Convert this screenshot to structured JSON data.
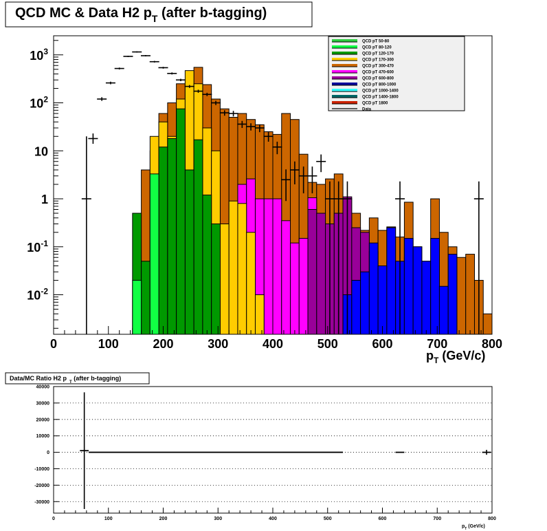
{
  "chart_data": [
    {
      "type": "histogram",
      "title": "QCD MC & Data H2 p",
      "title_sub": "T",
      "title_suffix": "(after b-tagging)",
      "xlabel": "p",
      "xlabel_sub": "T",
      "xlabel_suffix": "(GeV/c)",
      "xlim": [
        0,
        800
      ],
      "ylim": [
        0.0015,
        2500
      ],
      "y_scale": "log",
      "x_ticks": [
        "0",
        "100",
        "200",
        "300",
        "400",
        "500",
        "600",
        "700",
        "800"
      ],
      "y_ticks": [
        {
          "base": "10",
          "exp": "3",
          "value": 1000
        },
        {
          "base": "10",
          "exp": "2",
          "value": 100
        },
        {
          "base": "10",
          "exp": "",
          "value": 10
        },
        {
          "base": "1",
          "exp": "",
          "value": 1
        },
        {
          "base": "10",
          "exp": "-1",
          "value": 0.1
        },
        {
          "base": "10",
          "exp": "-2",
          "value": 0.01
        }
      ],
      "bin_edges": [
        0,
        16,
        32,
        48,
        64,
        80,
        96,
        112,
        128,
        144,
        160,
        176,
        192,
        208,
        224,
        240,
        256,
        272,
        288,
        304,
        320,
        336,
        352,
        368,
        384,
        400,
        416,
        432,
        448,
        464,
        480,
        496,
        512,
        528,
        544,
        560,
        576,
        592,
        608,
        624,
        640,
        656,
        672,
        688,
        704,
        720,
        736,
        752,
        768,
        784,
        800
      ],
      "legend_position": "top-right",
      "series": [
        {
          "name": "QCD pT 50-80",
          "color": "#2ecc40",
          "values": []
        },
        {
          "name": "QCD pT 80-120",
          "color": "#11ff44",
          "values": [
            0,
            0,
            0,
            0,
            0,
            0,
            0,
            0,
            0,
            0.02,
            0,
            3.3,
            0,
            0,
            0,
            0,
            0,
            0,
            0,
            0,
            0,
            0,
            0,
            0,
            0,
            0,
            0,
            0,
            0,
            0,
            0,
            0,
            0,
            0,
            0,
            0,
            0,
            0,
            0,
            0,
            0,
            0,
            0,
            0,
            0,
            0,
            0,
            0,
            0,
            0
          ]
        },
        {
          "name": "QCD pT 120-170",
          "color": "#009900",
          "values": [
            0,
            0,
            0,
            0,
            0,
            0,
            0,
            0,
            0,
            0.5,
            0.05,
            1.5,
            12,
            18,
            75,
            4,
            17,
            1.2,
            0.3,
            0,
            0,
            0,
            0,
            0,
            0,
            0,
            0,
            0,
            0,
            0,
            0,
            0,
            0,
            0,
            0,
            0,
            0,
            0,
            0,
            0,
            0,
            0,
            0,
            0,
            0,
            0,
            0,
            0,
            0,
            0
          ]
        },
        {
          "name": "QCD pT 170-300",
          "color": "#ffcc00",
          "values": [
            0,
            0,
            0,
            0,
            0,
            0,
            0,
            0,
            0,
            0,
            0,
            20,
            40,
            20,
            120,
            470,
            250,
            30,
            10,
            0.3,
            0.9,
            0.8,
            0.2,
            0.01,
            0,
            0,
            0,
            0,
            0,
            0,
            0,
            0,
            0,
            0,
            0,
            0,
            0,
            0,
            0,
            0,
            0,
            0,
            0,
            0,
            0,
            0,
            0,
            0,
            0,
            0
          ]
        },
        {
          "name": "QCD pT 300-470",
          "color": "#cc6600",
          "values": [
            0,
            0,
            0,
            0,
            0,
            0,
            0,
            0,
            0,
            0,
            0,
            0,
            0,
            0,
            0,
            0,
            0,
            0,
            0,
            80,
            45,
            50,
            75,
            40,
            10,
            4,
            50,
            30,
            7,
            1.0,
            0.1,
            0.5,
            0.1,
            0.005,
            0.2,
            0,
            0,
            0,
            0,
            0,
            0,
            0,
            0,
            0,
            0,
            0,
            0,
            0,
            0,
            0
          ]
        },
        {
          "name": "QCD pT 470-600",
          "color": "#ff00ff",
          "values": [
            0,
            0,
            0,
            0,
            0,
            0,
            0,
            0,
            0,
            0,
            0,
            0,
            0,
            0,
            0,
            0,
            0,
            0,
            0,
            0,
            0,
            0,
            0,
            0,
            0,
            0,
            0,
            0,
            0,
            0,
            0,
            0,
            0,
            0,
            0,
            0,
            0,
            0,
            0,
            0,
            0,
            0,
            0,
            0,
            0,
            0,
            0,
            0,
            0,
            0
          ]
        },
        {
          "name": "QCD pT 600-800",
          "color": "#990099",
          "values": [
            0,
            0,
            0,
            0,
            0,
            0,
            0,
            0,
            0,
            0,
            0,
            0,
            0,
            0,
            0,
            0,
            0,
            0,
            0,
            0,
            0,
            0,
            0,
            0,
            0,
            0,
            0,
            0,
            0,
            0,
            0,
            0,
            0,
            0,
            0,
            0,
            0,
            0,
            0,
            0,
            0,
            0,
            0,
            0,
            0,
            0,
            0,
            0,
            0,
            0
          ]
        },
        {
          "name": "QCD pT 800-1000",
          "color": "#000099",
          "values": []
        },
        {
          "name": "QCD pT 1000-1400",
          "color": "#33ffff",
          "values": []
        },
        {
          "name": "QCD pT 1400-1800",
          "color": "#006666",
          "values": []
        },
        {
          "name": "QCD pT 1800",
          "color": "#cc2200",
          "values": []
        },
        {
          "name": "Data",
          "color": "#000000",
          "values": []
        }
      ],
      "stack_totals": [
        0,
        0,
        0,
        0,
        0,
        0,
        0,
        0,
        0,
        0.002,
        4,
        10,
        60,
        100,
        250,
        280,
        550,
        240,
        120,
        75,
        50,
        60,
        45,
        35,
        25,
        22,
        60,
        45,
        8.5,
        2.2,
        2.0,
        2.6,
        3.3,
        1.0,
        0.5,
        0.22,
        0.4,
        0.22,
        0.26,
        0.16,
        0.85,
        0.1,
        0.05,
        1.0,
        0.2,
        0.1,
        0.06,
        0.07,
        0.02,
        0.004
      ],
      "mid_stacks": [
        {
          "color": "#ff00ff",
          "upper": [
            0,
            0,
            0,
            0,
            0,
            0,
            0,
            0,
            0,
            0,
            0,
            0,
            0,
            0,
            0,
            0,
            0,
            0,
            0,
            0,
            0,
            0,
            0,
            0,
            0,
            0,
            0,
            0,
            0,
            0,
            0,
            0,
            0,
            0,
            0,
            0,
            0,
            0,
            0,
            0,
            0,
            0,
            0,
            0,
            0,
            0,
            0,
            0,
            0,
            0
          ]
        },
        {
          "color": "#990099",
          "upper": []
        }
      ],
      "magenta_segment": {
        "start_bin": 21,
        "values": [
          2.0,
          2.6,
          1.0,
          1.0,
          1.0,
          0.35,
          0.12,
          0.15,
          1.05,
          0.1,
          0.03,
          0.2,
          0.02,
          0.01,
          0.005
        ]
      },
      "purple_segment": {
        "start_bin": 29,
        "values": [
          0.6,
          0.5,
          0.3,
          0.5,
          1.1,
          0.25,
          0.2,
          0.08,
          0.04,
          0.05,
          0.03,
          0.06,
          0.005
        ]
      },
      "blue_segment": {
        "start_bin": 33,
        "values": [
          0.01,
          0.02,
          0.03,
          0.12,
          0.04,
          0.25,
          0.05,
          0.15,
          0.1,
          0.05,
          0.15,
          0.015,
          0.07
        ]
      },
      "data_points": [
        {
          "x": 60,
          "y": 1,
          "ylo": 0.0015,
          "yhi": 20
        },
        {
          "x": 72,
          "y": 18,
          "ylo": 14,
          "yhi": 23
        },
        {
          "x": 88,
          "y": 120,
          "ylo": 110,
          "yhi": 131
        },
        {
          "x": 104,
          "y": 260,
          "ylo": 244,
          "yhi": 276
        },
        {
          "x": 120,
          "y": 520,
          "ylo": 497,
          "yhi": 543
        },
        {
          "x": 136,
          "y": 930,
          "ylo": 900,
          "yhi": 960
        },
        {
          "x": 152,
          "y": 1150,
          "ylo": 1116,
          "yhi": 1184
        },
        {
          "x": 168,
          "y": 960,
          "ylo": 929,
          "yhi": 991
        },
        {
          "x": 184,
          "y": 720,
          "ylo": 693,
          "yhi": 747
        },
        {
          "x": 200,
          "y": 540,
          "ylo": 517,
          "yhi": 563
        },
        {
          "x": 216,
          "y": 410,
          "ylo": 390,
          "yhi": 430
        },
        {
          "x": 232,
          "y": 300,
          "ylo": 283,
          "yhi": 317
        },
        {
          "x": 248,
          "y": 220,
          "ylo": 205,
          "yhi": 235
        },
        {
          "x": 264,
          "y": 175,
          "ylo": 162,
          "yhi": 188
        },
        {
          "x": 280,
          "y": 150,
          "ylo": 138,
          "yhi": 162
        },
        {
          "x": 296,
          "y": 100,
          "ylo": 90,
          "yhi": 110
        },
        {
          "x": 312,
          "y": 62,
          "ylo": 54,
          "yhi": 70
        },
        {
          "x": 328,
          "y": 60,
          "ylo": 52,
          "yhi": 68
        },
        {
          "x": 344,
          "y": 36,
          "ylo": 30,
          "yhi": 42
        },
        {
          "x": 360,
          "y": 32,
          "ylo": 26.5,
          "yhi": 37.5
        },
        {
          "x": 376,
          "y": 30,
          "ylo": 24.5,
          "yhi": 35.5
        },
        {
          "x": 392,
          "y": 20,
          "ylo": 15.5,
          "yhi": 24.5
        },
        {
          "x": 408,
          "y": 12,
          "ylo": 8.5,
          "yhi": 15.5
        },
        {
          "x": 424,
          "y": 2.5,
          "ylo": 0.9,
          "yhi": 4.1
        },
        {
          "x": 440,
          "y": 4.0,
          "ylo": 2.0,
          "yhi": 6.0
        },
        {
          "x": 456,
          "y": 3.0,
          "ylo": 1.3,
          "yhi": 4.7
        },
        {
          "x": 472,
          "y": 3.0,
          "ylo": 1.3,
          "yhi": 4.7
        },
        {
          "x": 488,
          "y": 6.0,
          "ylo": 3.6,
          "yhi": 8.4
        },
        {
          "x": 504,
          "y": 1,
          "ylo": 0.0015,
          "yhi": 2.3
        },
        {
          "x": 520,
          "y": 1,
          "ylo": 0.0015,
          "yhi": 2.3
        },
        {
          "x": 536,
          "y": 1,
          "ylo": 0.0015,
          "yhi": 2.3
        },
        {
          "x": 632,
          "y": 1,
          "ylo": 0.0015,
          "yhi": 2.3
        },
        {
          "x": 776,
          "y": 1,
          "ylo": 0.0015,
          "yhi": 2.3
        }
      ]
    },
    {
      "type": "scatter",
      "title": "Data/MC Ratio H2 p",
      "title_sub": "T",
      "title_suffix": "(after b-tagging)",
      "xlabel": "p",
      "xlabel_sub": "T",
      "xlabel_suffix": "(GeV/c)",
      "xlim": [
        0,
        800
      ],
      "ylim": [
        -37000,
        40000
      ],
      "x_ticks": [
        "0",
        "100",
        "200",
        "300",
        "400",
        "500",
        "600",
        "700",
        "800"
      ],
      "y_ticks": [
        "40000",
        "30000",
        "20000",
        "10000",
        "0",
        "-10000",
        "-20000",
        "-30000"
      ],
      "y_tick_values": [
        40000,
        30000,
        20000,
        10000,
        0,
        -10000,
        -20000,
        -30000
      ],
      "grid": true,
      "points": [
        {
          "x": 56,
          "y": 1000,
          "ylo": -34500,
          "yhi": 36500,
          "xerr": 8
        },
        {
          "x": 64,
          "y": 0,
          "ylo": 0,
          "yhi": 0,
          "xerr": 0
        },
        {
          "x": 296,
          "y": 0,
          "ylo": 0,
          "yhi": 0,
          "xerr": 232
        },
        {
          "x": 632,
          "y": 0,
          "ylo": 0,
          "yhi": 0,
          "xerr": 8
        },
        {
          "x": 790,
          "y": 0,
          "ylo": -1500,
          "yhi": 1500,
          "xerr": 8
        }
      ]
    }
  ]
}
